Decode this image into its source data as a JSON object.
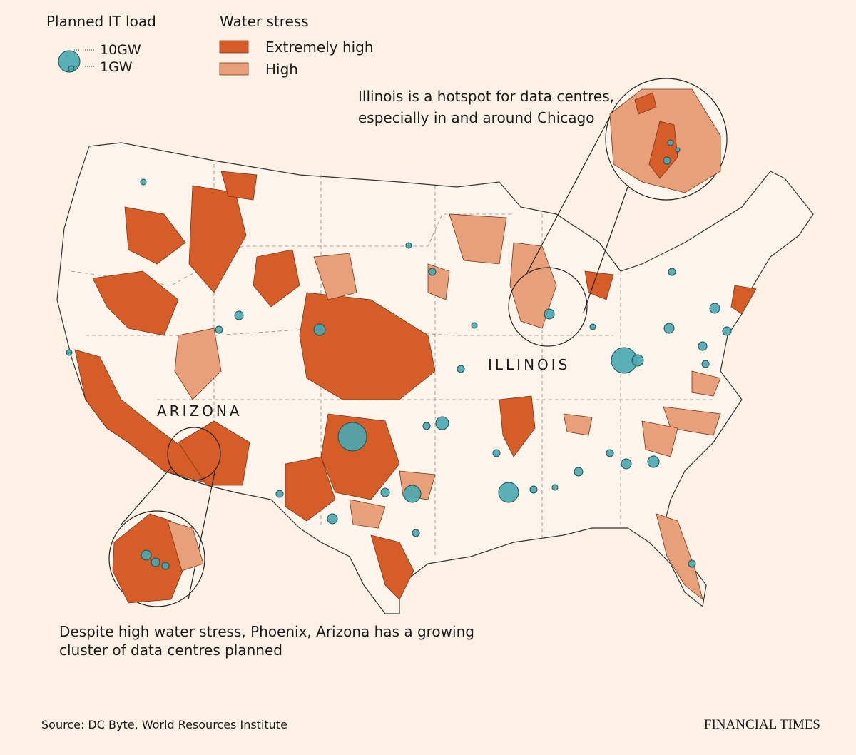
{
  "legend": {
    "size_title": "Planned IT load",
    "size_labels": [
      "10GW",
      "1GW"
    ],
    "stress_title": "Water stress",
    "stress_labels": [
      "Extremely high",
      "High"
    ]
  },
  "map_labels": {
    "illinois": "ILLINOIS",
    "arizona": "ARIZONA"
  },
  "annotations": {
    "illinois": [
      "Illinois is a hotspot for data centres,",
      "especially in and around Chicago"
    ],
    "arizona": [
      "Despite high water stress, Phoenix, Arizona has a growing",
      "cluster of data centres planned"
    ]
  },
  "source": "Source: DC Byte, World Resources Institute",
  "brand": "FINANCIAL TIMES"
}
